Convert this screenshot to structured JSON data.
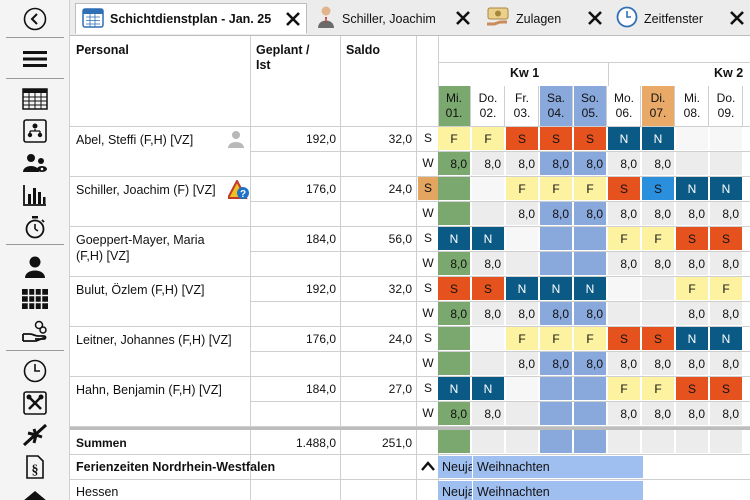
{
  "tabs": [
    {
      "title": "Schichtdienstplan - Jan. 25",
      "icon": "calendar-icon",
      "active": true
    },
    {
      "title": "Schiller, Joachim",
      "icon": "person-icon",
      "active": false
    },
    {
      "title": "Zulagen",
      "icon": "money-icon",
      "active": false
    },
    {
      "title": "Zeitfenster",
      "icon": "clock-icon",
      "active": false
    }
  ],
  "sidebar_icons": [
    "back-icon",
    "menu-icon",
    "table-icon",
    "org-chart-icon",
    "group-icon",
    "bar-chart-icon",
    "stopwatch-icon",
    "user-icon",
    "shift-grid-icon",
    "hand-coins-icon",
    "clock-icon",
    "tools-icon",
    "airplane-icon",
    "paragraph-icon",
    "house-icon"
  ],
  "headers": {
    "personal": "Personal",
    "planned": "Geplant /",
    "actual": "Ist",
    "balance": "Saldo"
  },
  "weeks": [
    {
      "label": "Kw 1"
    },
    {
      "label": "Kw 2"
    }
  ],
  "days": [
    {
      "day": "Mi.",
      "date": "01.",
      "kind": "holiday"
    },
    {
      "day": "Do.",
      "date": "02.",
      "kind": "normal"
    },
    {
      "day": "Fr.",
      "date": "03.",
      "kind": "normal"
    },
    {
      "day": "Sa.",
      "date": "04.",
      "kind": "weekend"
    },
    {
      "day": "So.",
      "date": "05.",
      "kind": "weekend"
    },
    {
      "day": "Mo.",
      "date": "06.",
      "kind": "normal"
    },
    {
      "day": "Di.",
      "date": "07.",
      "kind": "special"
    },
    {
      "day": "Mi.",
      "date": "08.",
      "kind": "normal"
    },
    {
      "day": "Do.",
      "date": "09.",
      "kind": "normal"
    }
  ],
  "colors": {
    "F": "#fdf2a0",
    "S": "#e5521e",
    "N": "#0b5a86",
    "N_text": "#ffffff",
    "S_blue": "#2a8fdd",
    "holiday": "#7aa86e",
    "weekend": "#89a8dc",
    "special": "#e9a969",
    "empty": "#ececec",
    "hours_normal": "#ececec",
    "holiday_bar": "#9fbff0"
  },
  "staff": [
    {
      "name": "Abel, Steffi (F,H) [VZ]",
      "planned": "192,0",
      "balance": "32,0",
      "icon": "person-grey-icon",
      "shifts": [
        "F",
        "F",
        "S",
        "S",
        "S",
        "N",
        "N",
        "",
        ""
      ],
      "hours": [
        "8,0",
        "8,0",
        "8,0",
        "8,0",
        "8,0",
        "8,0",
        "8,0",
        "",
        ""
      ]
    },
    {
      "name": "Schiller, Joachim (F) [VZ]",
      "planned": "176,0",
      "balance": "24,0",
      "icon": "warning-question-icon",
      "s_highlight": true,
      "shifts": [
        "",
        "",
        "F",
        "F",
        "F",
        "S",
        "S",
        "N",
        "N"
      ],
      "hours": [
        "",
        "",
        "8,0",
        "8,0",
        "8,0",
        "8,0",
        "8,0",
        "8,0",
        "8,0"
      ]
    },
    {
      "name": "Goeppert-Mayer, Maria",
      "name2": "(F,H) [VZ]",
      "planned": "184,0",
      "balance": "56,0",
      "shifts": [
        "N",
        "N",
        "",
        "",
        "",
        "F",
        "F",
        "S",
        "S"
      ],
      "hours": [
        "8,0",
        "8,0",
        "",
        "",
        "",
        "8,0",
        "8,0",
        "8,0",
        "8,0"
      ]
    },
    {
      "name": "Bulut, Özlem (F,H) [VZ]",
      "planned": "192,0",
      "balance": "32,0",
      "shifts": [
        "S",
        "S",
        "N",
        "N",
        "N",
        "",
        "",
        "F",
        "F"
      ],
      "hours": [
        "8,0",
        "8,0",
        "8,0",
        "8,0",
        "8,0",
        "",
        "",
        "8,0",
        "8,0"
      ]
    },
    {
      "name": "Leitner, Johannes (F,H) [VZ]",
      "planned": "176,0",
      "balance": "24,0",
      "shifts": [
        "",
        "",
        "F",
        "F",
        "F",
        "S",
        "S",
        "N",
        "N"
      ],
      "hours": [
        "",
        "",
        "8,0",
        "8,0",
        "8,0",
        "8,0",
        "8,0",
        "8,0",
        "8,0"
      ]
    },
    {
      "name": "Hahn, Benjamin (F,H) [VZ]",
      "planned": "184,0",
      "balance": "27,0",
      "shifts": [
        "N",
        "N",
        "",
        "",
        "",
        "F",
        "F",
        "S",
        "S"
      ],
      "hours": [
        "8,0",
        "8,0",
        "",
        "",
        "",
        "8,0",
        "8,0",
        "8,0",
        "8,0"
      ]
    }
  ],
  "sums": {
    "label": "Summen",
    "planned": "1.488,0",
    "balance": "251,0"
  },
  "holiday_sections": [
    {
      "label": "Ferienzeiten Nordrhein-Westfalen",
      "collapsible": true,
      "bar1": "Neuja",
      "bar2": "Weihnachten"
    },
    {
      "label": "Hessen",
      "bar1": "Neuja",
      "bar2": "Weihnachten"
    }
  ],
  "row_labels": {
    "S": "S",
    "W": "W"
  }
}
